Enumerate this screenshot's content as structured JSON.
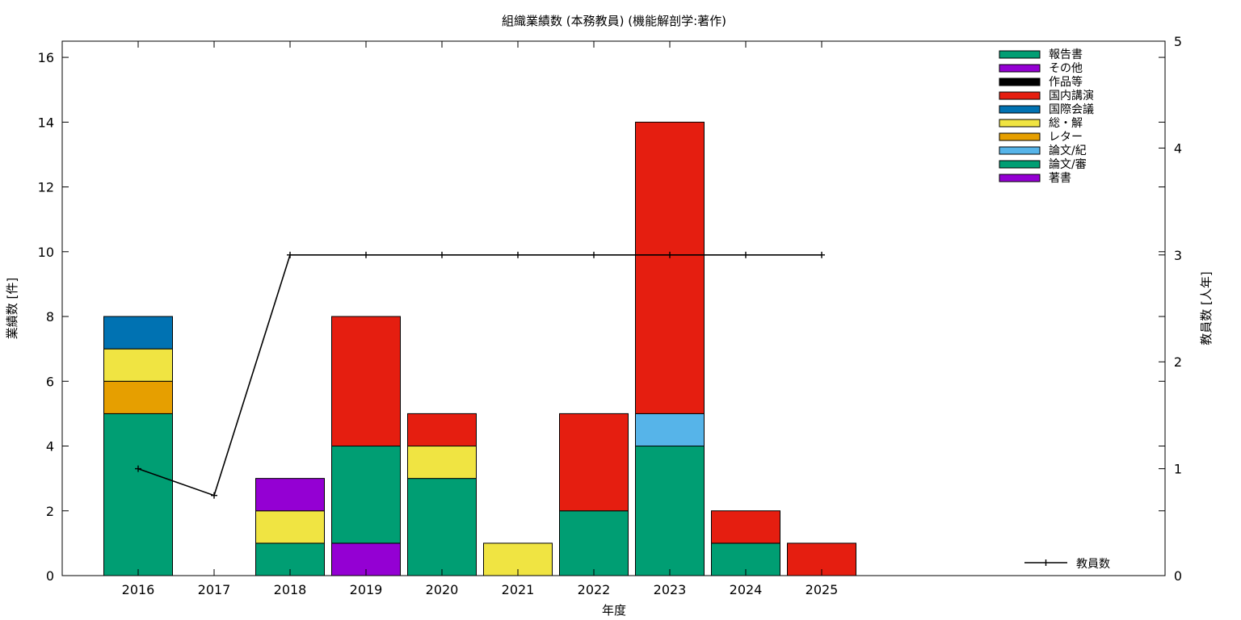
{
  "chart_data": {
    "type": "bar",
    "stacked": true,
    "title": "組織業績数 (本務教員) (機能解剖学:著作)",
    "xlabel": "年度",
    "ylabel": "業績数 [件]",
    "y2label": "教員数 [人年]",
    "categories": [
      "2016",
      "2017",
      "2018",
      "2019",
      "2020",
      "2021",
      "2022",
      "2023",
      "2024",
      "2025"
    ],
    "ylim": [
      0,
      16.5
    ],
    "yticks": [
      0,
      2,
      4,
      6,
      8,
      10,
      12,
      14,
      16
    ],
    "y2lim": [
      0,
      5
    ],
    "y2ticks": [
      0,
      1,
      2,
      3,
      4,
      5
    ],
    "grid": false,
    "legend_position": "top-right",
    "series": [
      {
        "name": "著書",
        "color": "#9400d3",
        "values": [
          0,
          0,
          0,
          1,
          0,
          0,
          0,
          0,
          0,
          0
        ]
      },
      {
        "name": "論文/審",
        "color": "#009e73",
        "values": [
          5,
          0,
          1,
          3,
          3,
          0,
          2,
          4,
          1,
          0
        ]
      },
      {
        "name": "論文/紀",
        "color": "#56b4e9",
        "values": [
          0,
          0,
          0,
          0,
          0,
          0,
          0,
          1,
          0,
          0
        ]
      },
      {
        "name": "レター",
        "color": "#e69f00",
        "values": [
          1,
          0,
          0,
          0,
          0,
          0,
          0,
          0,
          0,
          0
        ]
      },
      {
        "name": "総・解",
        "color": "#f0e442",
        "values": [
          1,
          0,
          1,
          0,
          1,
          1,
          0,
          0,
          0,
          0
        ]
      },
      {
        "name": "国際会議",
        "color": "#0072b2",
        "values": [
          1,
          0,
          0,
          0,
          0,
          0,
          0,
          0,
          0,
          0
        ]
      },
      {
        "name": "国内講演",
        "color": "#e51e10",
        "values": [
          0,
          0,
          0,
          4,
          1,
          0,
          3,
          9,
          1,
          1
        ]
      },
      {
        "name": "作品等",
        "color": "#000000",
        "values": [
          0,
          0,
          0,
          0,
          0,
          0,
          0,
          0,
          0,
          0
        ]
      },
      {
        "name": "その他",
        "color": "#9400d3",
        "values": [
          0,
          0,
          1,
          0,
          0,
          0,
          0,
          0,
          0,
          0
        ]
      },
      {
        "name": "報告書",
        "color": "#009e73",
        "values": [
          0,
          0,
          0,
          0,
          0,
          0,
          0,
          0,
          0,
          0
        ]
      }
    ],
    "legend_order": [
      "報告書",
      "その他",
      "作品等",
      "国内講演",
      "国際会議",
      "総・解",
      "レター",
      "論文/紀",
      "論文/審",
      "著書"
    ],
    "line_series": {
      "name": "教員数",
      "axis": "y2",
      "color": "#000000",
      "values": [
        1,
        0.75,
        3,
        3,
        3,
        3,
        3,
        3,
        3,
        3
      ]
    }
  }
}
